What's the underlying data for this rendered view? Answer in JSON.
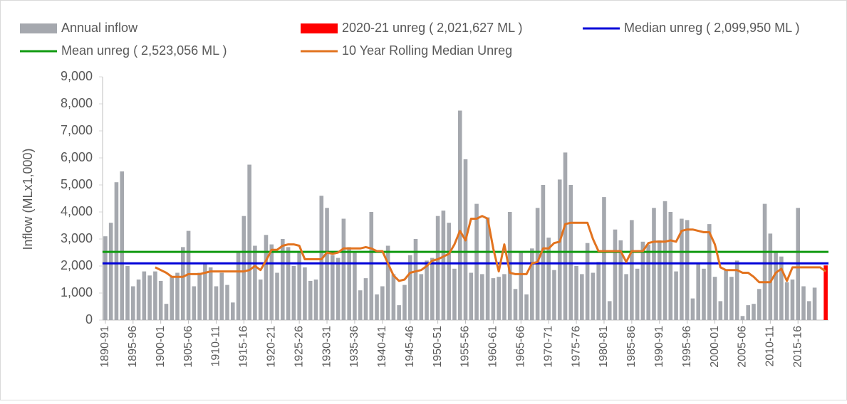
{
  "chart_data": {
    "type": "bar",
    "ylabel": "Inflow (MLx1,000)",
    "ylim": [
      0,
      9000
    ],
    "yticks": [
      0,
      {
        "value": 1000,
        "label": "1,000"
      },
      {
        "value": 2000,
        "label": "2,000"
      },
      {
        "value": 3000,
        "label": "3,000"
      },
      {
        "value": 4000,
        "label": "4,000"
      },
      {
        "value": 5000,
        "label": "5,000"
      },
      {
        "value": 6000,
        "label": "6,000"
      },
      {
        "value": 7000,
        "label": "7,000"
      },
      {
        "value": 8000,
        "label": "8,000"
      },
      {
        "value": 9000,
        "label": "9,000"
      }
    ],
    "categories": [
      "1890-91",
      null,
      null,
      null,
      null,
      "1895-96",
      null,
      null,
      null,
      null,
      "1900-01",
      null,
      null,
      null,
      null,
      "1905-06",
      null,
      null,
      null,
      null,
      "1910-11",
      null,
      null,
      null,
      null,
      "1915-16",
      null,
      null,
      null,
      null,
      "1920-21",
      null,
      null,
      null,
      null,
      "1925-26",
      null,
      null,
      null,
      null,
      "1930-31",
      null,
      null,
      null,
      null,
      "1935-36",
      null,
      null,
      null,
      null,
      "1940-41",
      null,
      null,
      null,
      null,
      "1945-46",
      null,
      null,
      null,
      null,
      "1950-51",
      null,
      null,
      null,
      null,
      "1955-56",
      null,
      null,
      null,
      null,
      "1960-61",
      null,
      null,
      null,
      null,
      "1965-66",
      null,
      null,
      null,
      null,
      "1970-71",
      null,
      null,
      null,
      null,
      "1975-76",
      null,
      null,
      null,
      null,
      "1980-81",
      null,
      null,
      null,
      null,
      "1985-86",
      null,
      null,
      null,
      null,
      "1990-91",
      null,
      null,
      null,
      null,
      "1995-96",
      null,
      null,
      null,
      null,
      "2000-01",
      null,
      null,
      null,
      null,
      "2005-06",
      null,
      null,
      null,
      null,
      "2010-11",
      null,
      null,
      null,
      null,
      "2015-16",
      null,
      null,
      null,
      null,
      null
    ],
    "series": [
      {
        "name": "Annual inflow",
        "type": "bar",
        "color": "#a5a8ae",
        "values": [
          3100,
          3600,
          5100,
          5500,
          2000,
          1250,
          1500,
          1800,
          1650,
          1800,
          1450,
          600,
          1600,
          1750,
          2700,
          3300,
          1250,
          1750,
          2100,
          1950,
          1250,
          1750,
          1300,
          650,
          2500,
          3850,
          5750,
          2750,
          1500,
          3150,
          2800,
          1750,
          3000,
          2700,
          2000,
          2500,
          1950,
          1450,
          1500,
          4600,
          4150,
          2400,
          2300,
          3750,
          2700,
          2550,
          1100,
          1550,
          4000,
          950,
          1250,
          2750,
          1700,
          550,
          1300,
          2400,
          3000,
          1700,
          2200,
          2300,
          3850,
          4050,
          3600,
          1900,
          7750,
          5950,
          1750,
          4300,
          1700,
          3800,
          1550,
          1600,
          1700,
          4000,
          1150,
          2500,
          950,
          2650,
          4150,
          5000,
          3050,
          1850,
          5200,
          6200,
          5000,
          2000,
          1700,
          2850,
          1750,
          2150,
          4550,
          700,
          3350,
          2950,
          1700,
          3700,
          1900,
          2900,
          2800,
          4150,
          2950,
          4400,
          4000,
          1800,
          3750,
          3700,
          800,
          2100,
          1900,
          3550,
          1600,
          700,
          1850,
          1600,
          2200,
          150,
          550,
          600,
          1150,
          4300,
          3200,
          2500,
          2350,
          1400,
          1500,
          4150,
          1250,
          700,
          1200,
          null,
          null
        ]
      },
      {
        "name": "2020-21 unreg ( 2,021,627 ML )",
        "type": "bar",
        "color": "#ff0000",
        "values": [
          null,
          null,
          null,
          null,
          null,
          null,
          null,
          null,
          null,
          null,
          null,
          null,
          null,
          null,
          null,
          null,
          null,
          null,
          null,
          null,
          null,
          null,
          null,
          null,
          null,
          null,
          null,
          null,
          null,
          null,
          null,
          null,
          null,
          null,
          null,
          null,
          null,
          null,
          null,
          null,
          null,
          null,
          null,
          null,
          null,
          null,
          null,
          null,
          null,
          null,
          null,
          null,
          null,
          null,
          null,
          null,
          null,
          null,
          null,
          null,
          null,
          null,
          null,
          null,
          null,
          null,
          null,
          null,
          null,
          null,
          null,
          null,
          null,
          null,
          null,
          null,
          null,
          null,
          null,
          null,
          null,
          null,
          null,
          null,
          null,
          null,
          null,
          null,
          null,
          null,
          null,
          null,
          null,
          null,
          null,
          null,
          null,
          null,
          null,
          null,
          null,
          null,
          null,
          null,
          null,
          null,
          null,
          null,
          null,
          null,
          null,
          null,
          null,
          null,
          null,
          null,
          null,
          null,
          null,
          null,
          null,
          null,
          null,
          null,
          null,
          null,
          null,
          null,
          null,
          null,
          2021.627
        ]
      },
      {
        "name": "10 Year Rolling Median Unreg",
        "type": "line",
        "color": "#e2731f",
        "values": [
          null,
          null,
          null,
          null,
          null,
          null,
          null,
          null,
          null,
          1950,
          1850,
          1750,
          1600,
          1600,
          1600,
          1700,
          1700,
          1700,
          1750,
          1800,
          1800,
          1800,
          1800,
          1800,
          1800,
          1800,
          1850,
          2000,
          1850,
          2200,
          2600,
          2600,
          2750,
          2800,
          2800,
          2750,
          2250,
          2250,
          2250,
          2250,
          2500,
          2450,
          2500,
          2650,
          2650,
          2650,
          2650,
          2700,
          2650,
          2550,
          2550,
          2100,
          1650,
          1450,
          1500,
          1750,
          1800,
          1850,
          2000,
          2200,
          2250,
          2350,
          2450,
          2800,
          3300,
          2950,
          3750,
          3750,
          3850,
          3750,
          2650,
          1800,
          2800,
          1750,
          1700,
          1700,
          1700,
          2100,
          2150,
          2650,
          2650,
          2850,
          2900,
          3550,
          3600,
          3600,
          3600,
          3600,
          3000,
          2550,
          2550,
          2550,
          2550,
          2550,
          2150,
          2550,
          2550,
          2550,
          2850,
          2900,
          2900,
          2900,
          2950,
          2900,
          3300,
          3350,
          3350,
          3300,
          3250,
          3250,
          2800,
          1950,
          1850,
          1850,
          1850,
          1750,
          1750,
          1600,
          1400,
          1400,
          1400,
          1750,
          1900,
          1450,
          1950,
          1950,
          1950,
          1950,
          1950,
          1950,
          1800
        ]
      }
    ],
    "hlines": [
      {
        "name": "Median unreg ( 2,099,950 ML )",
        "color": "#0000d8",
        "value": 2099.95
      },
      {
        "name": "Mean unreg ( 2,523,056 ML )",
        "color": "#109a10",
        "value": 2523.056
      }
    ]
  }
}
